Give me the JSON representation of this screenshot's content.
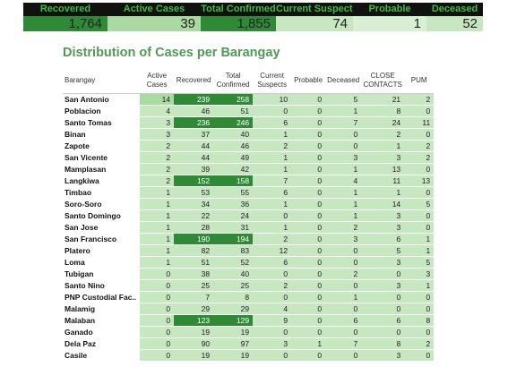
{
  "summary": {
    "labels": [
      "Recovered",
      "Active Cases",
      "Total Confirmed",
      "Current Suspects",
      "Probable",
      "Deceased"
    ],
    "values": [
      "1,764",
      "39",
      "1,855",
      "74",
      "1",
      "52"
    ],
    "colors": {
      "header_bg": "#111111",
      "header_text": "#3fbf3a",
      "value_bgs": [
        "#2f8a36",
        "#a9dba1",
        "#2f8a36",
        "#c6e7c0",
        "#d7f0d2",
        "#c6e7c0"
      ]
    }
  },
  "title": "Distribution of Cases per Barangay",
  "table": {
    "columns": [
      "Barangay",
      "Active Cases",
      "Recovered",
      "Total Confirmed",
      "Current Suspects",
      "Probable",
      "Deceased",
      "CLOSE CONTACTS",
      "PUM"
    ],
    "rows": [
      [
        "San Antonio",
        "14",
        "239",
        "258",
        "10",
        "0",
        "5",
        "21",
        "2"
      ],
      [
        "Poblacion",
        "4",
        "46",
        "51",
        "0",
        "0",
        "1",
        "8",
        "0"
      ],
      [
        "Santo Tomas",
        "3",
        "236",
        "246",
        "6",
        "0",
        "7",
        "24",
        "11"
      ],
      [
        "Binan",
        "3",
        "37",
        "40",
        "1",
        "0",
        "0",
        "2",
        "0"
      ],
      [
        "Zapote",
        "2",
        "44",
        "46",
        "2",
        "0",
        "0",
        "1",
        "2"
      ],
      [
        "San Vicente",
        "2",
        "44",
        "49",
        "1",
        "0",
        "3",
        "3",
        "2"
      ],
      [
        "Mamplasan",
        "2",
        "39",
        "42",
        "1",
        "0",
        "1",
        "13",
        "0"
      ],
      [
        "Langkiwa",
        "2",
        "152",
        "158",
        "7",
        "0",
        "4",
        "11",
        "13"
      ],
      [
        "Timbao",
        "1",
        "53",
        "55",
        "6",
        "0",
        "1",
        "1",
        "0"
      ],
      [
        "Soro-Soro",
        "1",
        "34",
        "36",
        "1",
        "0",
        "1",
        "14",
        "5"
      ],
      [
        "Santo Domingo",
        "1",
        "22",
        "24",
        "0",
        "0",
        "1",
        "3",
        "0"
      ],
      [
        "San Jose",
        "1",
        "28",
        "31",
        "1",
        "0",
        "2",
        "3",
        "0"
      ],
      [
        "San Francisco",
        "1",
        "190",
        "194",
        "2",
        "0",
        "3",
        "6",
        "1"
      ],
      [
        "Platero",
        "1",
        "82",
        "83",
        "12",
        "0",
        "0",
        "5",
        "1"
      ],
      [
        "Loma",
        "1",
        "51",
        "52",
        "6",
        "0",
        "0",
        "3",
        "5"
      ],
      [
        "Tubigan",
        "0",
        "38",
        "40",
        "0",
        "0",
        "2",
        "0",
        "3"
      ],
      [
        "Santo Nino",
        "0",
        "25",
        "25",
        "2",
        "0",
        "0",
        "3",
        "1"
      ],
      [
        "PNP Custodial Fac..",
        "0",
        "7",
        "8",
        "0",
        "0",
        "1",
        "0",
        "0"
      ],
      [
        "Malamig",
        "0",
        "29",
        "29",
        "4",
        "0",
        "0",
        "0",
        "0"
      ],
      [
        "Malaban",
        "0",
        "123",
        "129",
        "9",
        "0",
        "6",
        "6",
        "8"
      ],
      [
        "Ganado",
        "0",
        "19",
        "19",
        "0",
        "0",
        "0",
        "0",
        "0"
      ],
      [
        "Dela Paz",
        "0",
        "90",
        "97",
        "3",
        "1",
        "7",
        "8",
        "2"
      ],
      [
        "Casile",
        "0",
        "19",
        "19",
        "0",
        "0",
        "0",
        "3",
        "0"
      ]
    ]
  }
}
